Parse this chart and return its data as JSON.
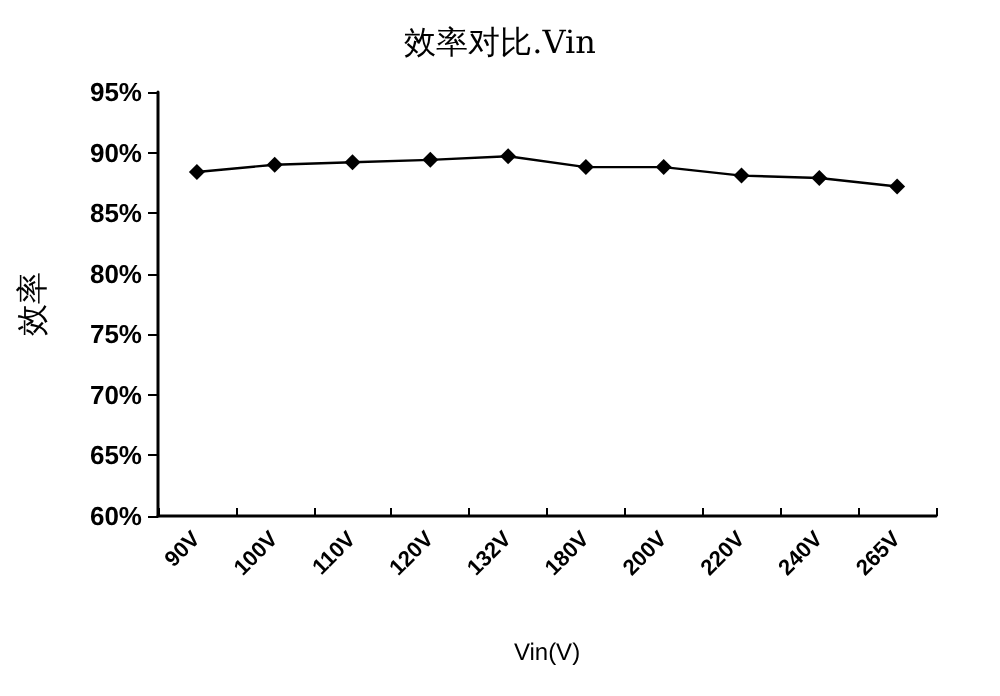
{
  "chart_data": {
    "type": "line",
    "title": "效率对比.Vin",
    "xlabel": "Vin(V)",
    "ylabel": "效率",
    "categories": [
      "90V",
      "100V",
      "110V",
      "120V",
      "132V",
      "180V",
      "200V",
      "220V",
      "240V",
      "265V"
    ],
    "series": [
      {
        "color": "#000000",
        "values": [
          88.4,
          89.0,
          89.2,
          89.4,
          89.7,
          88.8,
          88.8,
          88.1,
          87.9,
          87.2
        ]
      }
    ],
    "ylim": [
      60,
      95
    ],
    "yticks": [
      {
        "value": 60,
        "label": "60%"
      },
      {
        "value": 65,
        "label": "65%"
      },
      {
        "value": 70,
        "label": "70%"
      },
      {
        "value": 75,
        "label": "75%"
      },
      {
        "value": 80,
        "label": "80%"
      },
      {
        "value": 85,
        "label": "85%"
      },
      {
        "value": 90,
        "label": "90%"
      },
      {
        "value": 95,
        "label": "95%"
      }
    ],
    "grid": false,
    "marker": "diamond",
    "line_style": "solid"
  }
}
